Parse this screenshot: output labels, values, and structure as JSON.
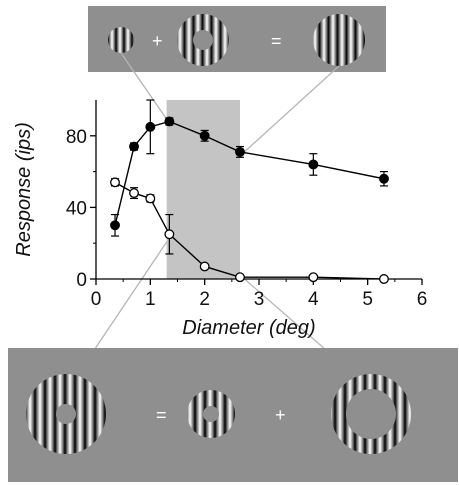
{
  "chart_data": {
    "type": "line",
    "xlabel": "Diameter (deg)",
    "ylabel": "Response (ips)",
    "xlim": [
      0,
      6
    ],
    "ylim": [
      0,
      100
    ],
    "xticks": [
      "0",
      "1",
      "2",
      "3",
      "4",
      "5",
      "6"
    ],
    "yticks": [
      "0",
      "40",
      "80"
    ],
    "shaded_region": [
      1.3,
      2.65
    ],
    "series": [
      {
        "marker": "filled-circle",
        "color": "#000000",
        "x": [
          0.35,
          0.7,
          1.0,
          1.35,
          2.0,
          2.65,
          4.0,
          5.3
        ],
        "y": [
          30,
          74,
          85,
          88,
          80,
          71,
          64,
          56
        ],
        "err": [
          6,
          2,
          15,
          2,
          3,
          3,
          6,
          4
        ]
      },
      {
        "marker": "open-circle",
        "color": "#000000",
        "x": [
          0.35,
          0.7,
          1.0,
          1.35,
          2.0,
          2.65,
          4.0,
          5.3
        ],
        "y": [
          54,
          48,
          45,
          25,
          7,
          1,
          1,
          0
        ],
        "err": [
          2,
          3,
          2,
          11,
          0,
          0,
          0,
          0
        ]
      }
    ],
    "top_panel_operators": [
      "+",
      "="
    ],
    "bottom_panel_operators": [
      "=",
      "+"
    ]
  },
  "colors": {
    "panel": "#8f8f8f",
    "shade": "#c4c4c4",
    "connector": "#b5b5b5"
  }
}
